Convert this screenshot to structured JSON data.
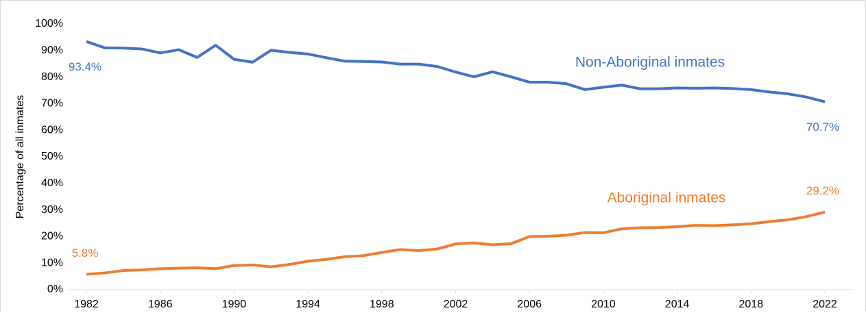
{
  "chart_data": {
    "type": "line",
    "ylabel": "Percentage of all inmates",
    "x": [
      1982,
      1983,
      1984,
      1985,
      1986,
      1987,
      1988,
      1989,
      1990,
      1991,
      1992,
      1993,
      1994,
      1995,
      1996,
      1997,
      1998,
      1999,
      2000,
      2001,
      2002,
      2003,
      2004,
      2005,
      2006,
      2007,
      2008,
      2009,
      2010,
      2011,
      2012,
      2013,
      2014,
      2015,
      2016,
      2017,
      2018,
      2019,
      2020,
      2021,
      2022
    ],
    "xlim": [
      1982,
      2022
    ],
    "xticks": [
      1982,
      1986,
      1990,
      1994,
      1998,
      2002,
      2006,
      2010,
      2014,
      2018,
      2022
    ],
    "ylim": [
      0,
      100
    ],
    "yticks": [
      {
        "value": 0,
        "label": "0%"
      },
      {
        "value": 10,
        "label": "10%"
      },
      {
        "value": 20,
        "label": "20%"
      },
      {
        "value": 30,
        "label": "30%"
      },
      {
        "value": 40,
        "label": "40%"
      },
      {
        "value": 50,
        "label": "50%"
      },
      {
        "value": 60,
        "label": "60%"
      },
      {
        "value": 70,
        "label": "70%"
      },
      {
        "value": 80,
        "label": "80%"
      },
      {
        "value": 90,
        "label": "90%"
      },
      {
        "value": 100,
        "label": "100%"
      }
    ],
    "grid": false,
    "series": [
      {
        "name": "Non-Aboriginal inmates",
        "color": "#4472c4",
        "values": [
          93.4,
          91.0,
          90.9,
          90.6,
          89.1,
          90.3,
          87.4,
          92.0,
          86.7,
          85.6,
          90.1,
          89.3,
          88.7,
          87.3,
          86.0,
          85.9,
          85.7,
          84.9,
          84.9,
          84.0,
          81.9,
          80.1,
          82.0,
          80.1,
          78.1,
          78.1,
          77.5,
          75.3,
          76.2,
          77.0,
          75.6,
          75.6,
          75.9,
          75.8,
          75.9,
          75.7,
          75.3,
          74.4,
          73.7,
          72.5,
          70.7
        ],
        "value_labels": [
          "93.4%",
          null,
          null,
          null,
          null,
          null,
          null,
          null,
          null,
          null,
          null,
          null,
          null,
          null,
          null,
          null,
          null,
          null,
          null,
          null,
          null,
          null,
          null,
          null,
          null,
          null,
          null,
          null,
          null,
          null,
          null,
          null,
          null,
          null,
          null,
          null,
          null,
          null,
          null,
          null,
          "70.7%"
        ]
      },
      {
        "name": "Aboriginal inmates",
        "color": "#ed7d31",
        "values": [
          5.8,
          6.3,
          7.2,
          7.4,
          7.9,
          8.1,
          8.2,
          7.9,
          9.1,
          9.3,
          8.6,
          9.5,
          10.7,
          11.4,
          12.4,
          12.8,
          14.0,
          15.1,
          14.7,
          15.3,
          17.2,
          17.6,
          16.9,
          17.3,
          20.0,
          20.1,
          20.5,
          21.5,
          21.4,
          22.9,
          23.3,
          23.4,
          23.7,
          24.2,
          24.1,
          24.4,
          24.8,
          25.6,
          26.3,
          27.5,
          29.2
        ],
        "value_labels": [
          "5.8%",
          null,
          null,
          null,
          null,
          null,
          null,
          null,
          null,
          null,
          null,
          null,
          null,
          null,
          null,
          null,
          null,
          null,
          null,
          null,
          null,
          null,
          null,
          null,
          null,
          null,
          null,
          null,
          null,
          null,
          null,
          null,
          null,
          null,
          null,
          null,
          null,
          null,
          null,
          null,
          "29.2%"
        ]
      }
    ]
  }
}
